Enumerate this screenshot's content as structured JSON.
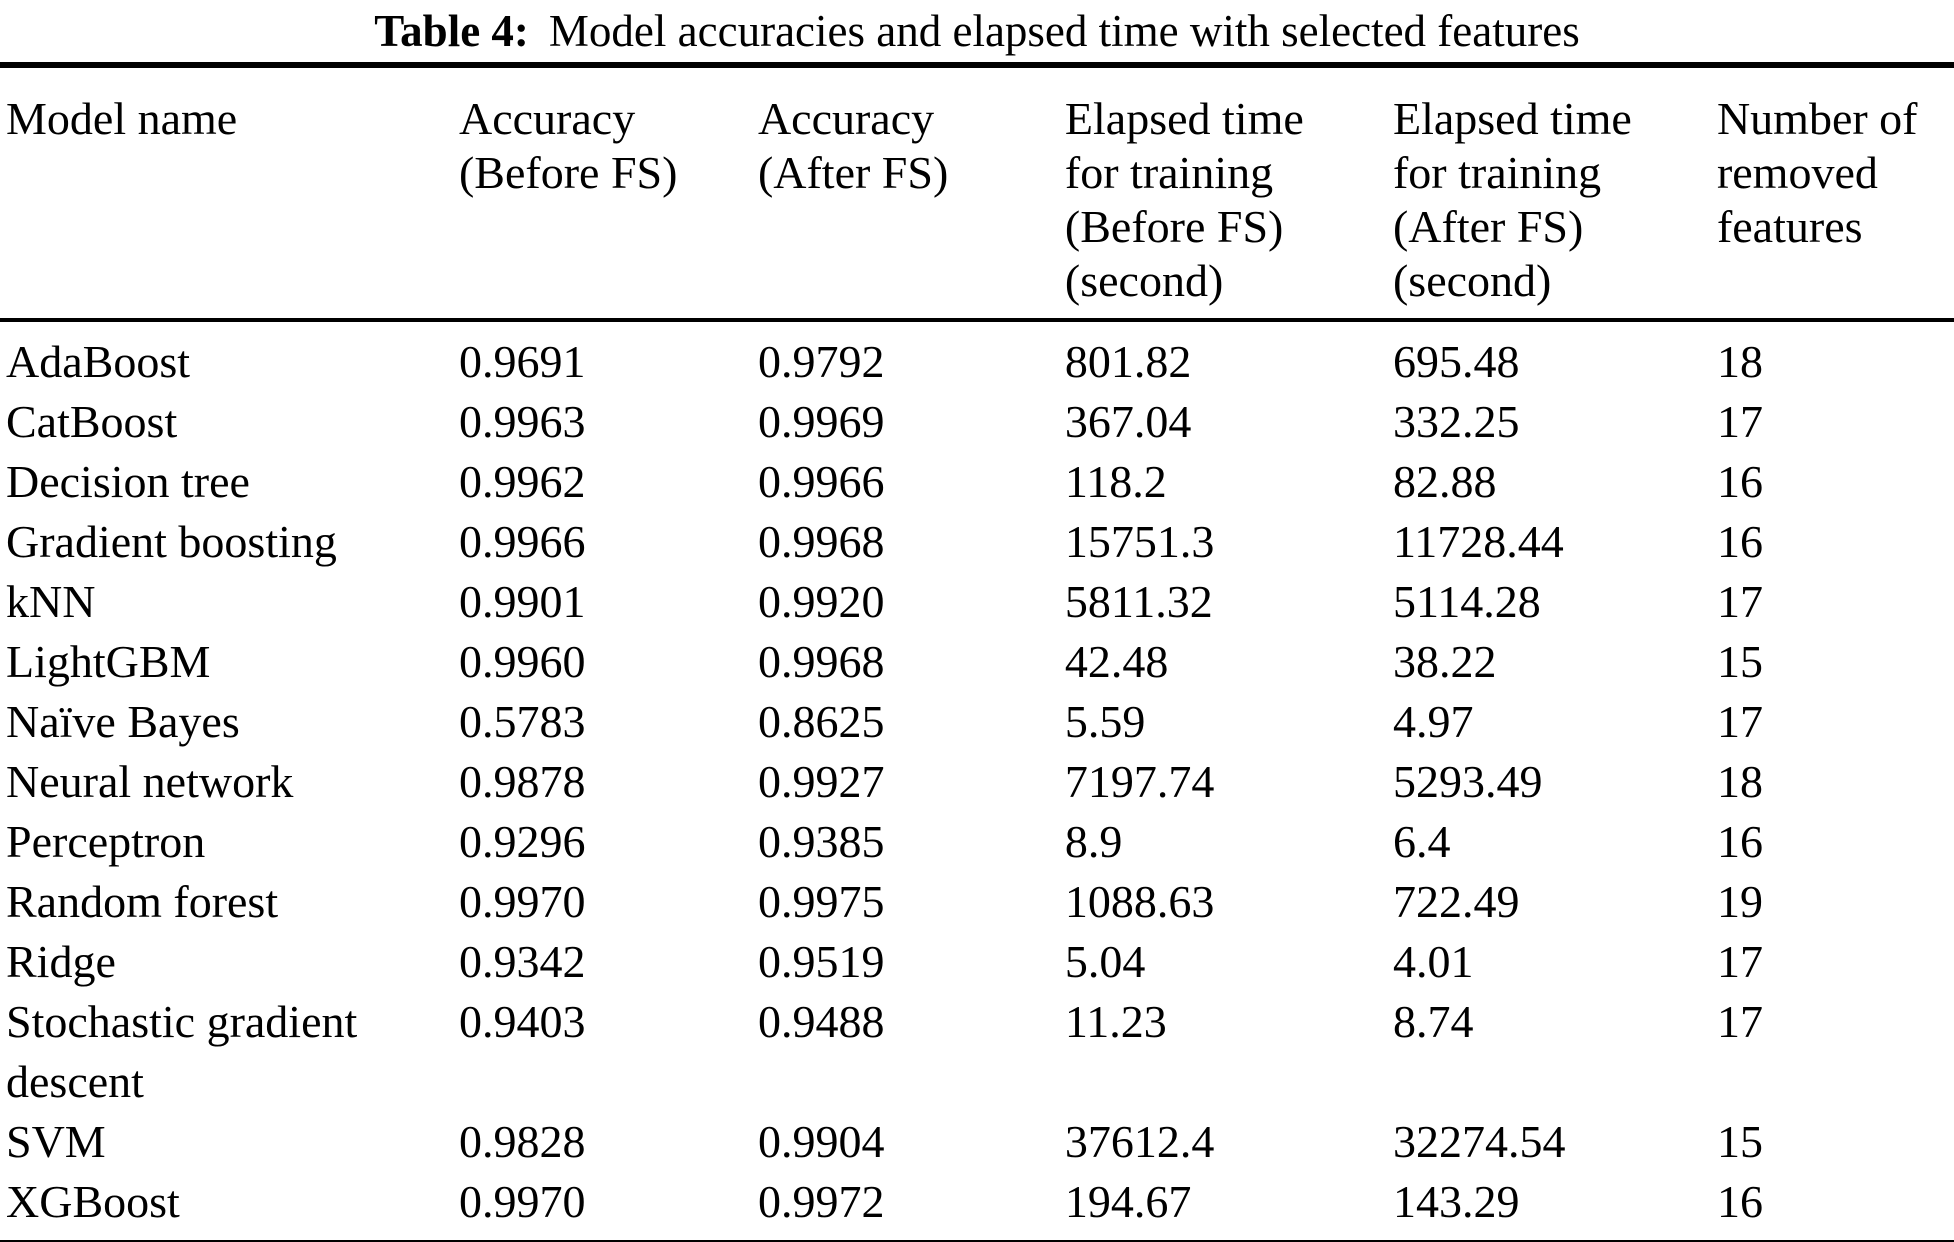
{
  "caption": {
    "label": "Table 4:",
    "text": "Model accuracies and elapsed time with selected features"
  },
  "table": {
    "columns": [
      {
        "id": "model-name",
        "header_lines": [
          "Model name"
        ]
      },
      {
        "id": "accuracy-before-fs",
        "header_lines": [
          "Accuracy",
          "(Before FS)"
        ]
      },
      {
        "id": "accuracy-after-fs",
        "header_lines": [
          "Accuracy",
          "(After FS)"
        ]
      },
      {
        "id": "time-before-fs",
        "header_lines": [
          "Elapsed time",
          "for training",
          "(Before FS)",
          "(second)"
        ]
      },
      {
        "id": "time-after-fs",
        "header_lines": [
          "Elapsed time",
          "for training",
          "(After FS)",
          "(second)"
        ]
      },
      {
        "id": "removed-features",
        "header_lines": [
          "Number of",
          "removed",
          "features"
        ]
      }
    ],
    "rows": [
      [
        "AdaBoost",
        "0.9691",
        "0.9792",
        "801.82",
        "695.48",
        "18"
      ],
      [
        "CatBoost",
        "0.9963",
        "0.9969",
        "367.04",
        "332.25",
        "17"
      ],
      [
        "Decision tree",
        "0.9962",
        "0.9966",
        "118.2",
        "82.88",
        "16"
      ],
      [
        "Gradient boosting",
        "0.9966",
        "0.9968",
        "15751.3",
        "11728.44",
        "16"
      ],
      [
        "kNN",
        "0.9901",
        "0.9920",
        "5811.32",
        "5114.28",
        "17"
      ],
      [
        "LightGBM",
        "0.9960",
        "0.9968",
        "42.48",
        "38.22",
        "15"
      ],
      [
        "Naïve Bayes",
        "0.5783",
        "0.8625",
        "5.59",
        "4.97",
        "17"
      ],
      [
        "Neural network",
        "0.9878",
        "0.9927",
        "7197.74",
        "5293.49",
        "18"
      ],
      [
        "Perceptron",
        "0.9296",
        "0.9385",
        "8.9",
        "6.4",
        "16"
      ],
      [
        "Random forest",
        "0.9970",
        "0.9975",
        "1088.63",
        "722.49",
        "19"
      ],
      [
        "Ridge",
        "0.9342",
        "0.9519",
        "5.04",
        "4.01",
        "17"
      ],
      [
        "Stochastic gradient descent",
        "0.9403",
        "0.9488",
        "11.23",
        "8.74",
        "17"
      ],
      [
        "SVM",
        "0.9828",
        "0.9904",
        "37612.4",
        "32274.54",
        "15"
      ],
      [
        "XGBoost",
        "0.9970",
        "0.9972",
        "194.67",
        "143.29",
        "16"
      ]
    ]
  }
}
